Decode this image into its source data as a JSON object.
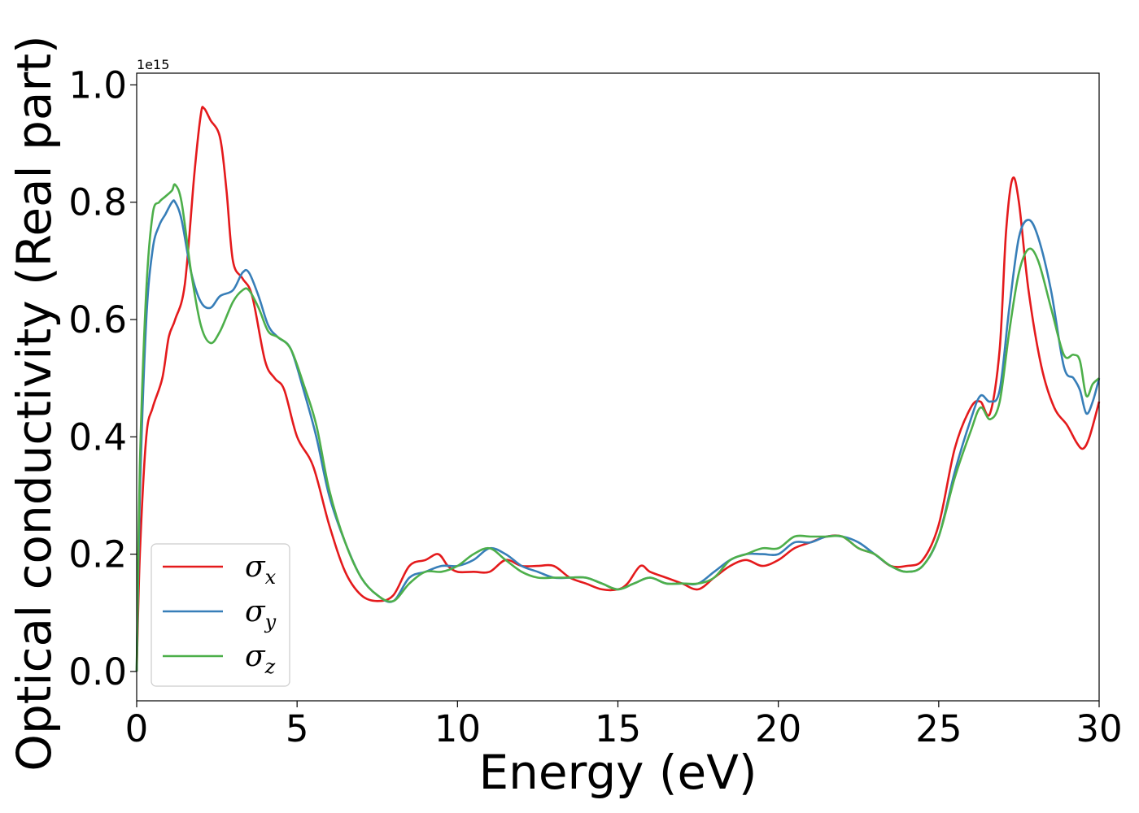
{
  "chart_data": {
    "type": "line",
    "title": "",
    "xlabel": "Energy (eV)",
    "ylabel": "Optical conductivity (Real part)",
    "y_offset_label": "1e15",
    "xlim": [
      0,
      30
    ],
    "ylim": [
      -0.05,
      1.02
    ],
    "xticks": [
      0,
      5,
      10,
      15,
      20,
      25,
      30
    ],
    "xtick_labels": [
      "0",
      "5",
      "10",
      "15",
      "20",
      "25",
      "30"
    ],
    "yticks": [
      0.0,
      0.2,
      0.4,
      0.6,
      0.8,
      1.0
    ],
    "ytick_labels": [
      "0.0",
      "0.2",
      "0.4",
      "0.6",
      "0.8",
      "1.0"
    ],
    "grid": false,
    "legend_position": "lower-left",
    "series": [
      {
        "name": "σx",
        "symbol": "σ",
        "subscript": "x",
        "color": "#e41a1c",
        "x": [
          0,
          0.1,
          0.3,
          0.5,
          0.8,
          1.0,
          1.2,
          1.5,
          1.8,
          2.0,
          2.1,
          2.3,
          2.6,
          2.8,
          3.0,
          3.3,
          3.6,
          4.0,
          4.3,
          4.6,
          5.0,
          5.5,
          6.0,
          6.5,
          7.0,
          7.5,
          8.0,
          8.5,
          9.0,
          9.4,
          9.7,
          10.0,
          10.5,
          11.0,
          11.5,
          12.0,
          12.5,
          13.0,
          13.5,
          14.0,
          14.5,
          15.0,
          15.3,
          15.7,
          16.0,
          16.5,
          17.0,
          17.5,
          18.0,
          18.5,
          19.0,
          19.5,
          20.0,
          20.5,
          21.0,
          21.5,
          22.0,
          22.5,
          23.0,
          23.5,
          24.0,
          24.5,
          25.0,
          25.5,
          26.0,
          26.3,
          26.6,
          26.9,
          27.1,
          27.3,
          27.5,
          27.8,
          28.2,
          28.6,
          29.0,
          29.3,
          29.5,
          29.7,
          30.0
        ],
        "y": [
          0.0,
          0.2,
          0.4,
          0.45,
          0.5,
          0.57,
          0.6,
          0.66,
          0.85,
          0.95,
          0.96,
          0.94,
          0.91,
          0.82,
          0.7,
          0.67,
          0.64,
          0.53,
          0.5,
          0.48,
          0.4,
          0.35,
          0.25,
          0.17,
          0.13,
          0.12,
          0.13,
          0.18,
          0.19,
          0.2,
          0.18,
          0.17,
          0.17,
          0.17,
          0.19,
          0.18,
          0.18,
          0.18,
          0.16,
          0.15,
          0.14,
          0.14,
          0.15,
          0.18,
          0.17,
          0.16,
          0.15,
          0.14,
          0.16,
          0.18,
          0.19,
          0.18,
          0.19,
          0.21,
          0.22,
          0.23,
          0.23,
          0.21,
          0.2,
          0.18,
          0.18,
          0.19,
          0.25,
          0.38,
          0.45,
          0.46,
          0.44,
          0.55,
          0.75,
          0.84,
          0.8,
          0.65,
          0.52,
          0.45,
          0.42,
          0.39,
          0.38,
          0.4,
          0.46
        ]
      },
      {
        "name": "σy",
        "symbol": "σ",
        "subscript": "y",
        "color": "#377eb8",
        "x": [
          0,
          0.1,
          0.3,
          0.5,
          0.7,
          0.9,
          1.1,
          1.2,
          1.4,
          1.7,
          2.0,
          2.3,
          2.6,
          3.0,
          3.3,
          3.5,
          3.8,
          4.1,
          4.4,
          4.8,
          5.2,
          5.6,
          6.0,
          6.5,
          7.0,
          7.5,
          8.0,
          8.5,
          9.0,
          9.5,
          10.0,
          10.5,
          11.0,
          11.5,
          12.0,
          12.5,
          13.0,
          13.5,
          14.0,
          14.5,
          15.0,
          15.5,
          16.0,
          16.5,
          17.0,
          17.5,
          18.0,
          18.5,
          19.0,
          19.5,
          20.0,
          20.5,
          21.0,
          21.5,
          22.0,
          22.5,
          23.0,
          23.5,
          24.0,
          24.5,
          25.0,
          25.5,
          26.0,
          26.3,
          26.6,
          26.9,
          27.2,
          27.5,
          27.8,
          28.1,
          28.5,
          28.9,
          29.2,
          29.4,
          29.6,
          29.8,
          30.0
        ],
        "y": [
          0.0,
          0.3,
          0.6,
          0.72,
          0.76,
          0.78,
          0.8,
          0.8,
          0.77,
          0.68,
          0.63,
          0.62,
          0.64,
          0.65,
          0.68,
          0.68,
          0.64,
          0.59,
          0.57,
          0.55,
          0.48,
          0.4,
          0.3,
          0.22,
          0.16,
          0.13,
          0.12,
          0.16,
          0.17,
          0.18,
          0.18,
          0.19,
          0.21,
          0.2,
          0.18,
          0.17,
          0.16,
          0.16,
          0.16,
          0.15,
          0.14,
          0.15,
          0.16,
          0.15,
          0.15,
          0.15,
          0.17,
          0.19,
          0.2,
          0.2,
          0.2,
          0.22,
          0.22,
          0.23,
          0.23,
          0.22,
          0.2,
          0.18,
          0.17,
          0.18,
          0.23,
          0.34,
          0.43,
          0.47,
          0.46,
          0.48,
          0.62,
          0.74,
          0.77,
          0.74,
          0.65,
          0.52,
          0.5,
          0.48,
          0.44,
          0.46,
          0.5
        ]
      },
      {
        "name": "σz",
        "symbol": "σ",
        "subscript": "z",
        "color": "#4daf4a",
        "x": [
          0,
          0.1,
          0.3,
          0.5,
          0.7,
          0.9,
          1.1,
          1.2,
          1.4,
          1.7,
          2.0,
          2.3,
          2.6,
          3.0,
          3.3,
          3.5,
          3.8,
          4.1,
          4.4,
          4.8,
          5.2,
          5.6,
          6.0,
          6.5,
          7.0,
          7.5,
          8.0,
          8.5,
          9.0,
          9.5,
          10.0,
          10.5,
          11.0,
          11.5,
          12.0,
          12.5,
          13.0,
          13.5,
          14.0,
          14.5,
          15.0,
          15.5,
          16.0,
          16.5,
          17.0,
          17.5,
          18.0,
          18.5,
          19.0,
          19.5,
          20.0,
          20.5,
          21.0,
          21.5,
          22.0,
          22.5,
          23.0,
          23.5,
          24.0,
          24.5,
          25.0,
          25.5,
          26.0,
          26.3,
          26.6,
          26.9,
          27.2,
          27.5,
          27.8,
          28.1,
          28.5,
          28.9,
          29.2,
          29.4,
          29.6,
          29.8,
          30.0
        ],
        "y": [
          0.0,
          0.35,
          0.65,
          0.78,
          0.8,
          0.81,
          0.82,
          0.83,
          0.8,
          0.68,
          0.59,
          0.56,
          0.58,
          0.63,
          0.65,
          0.65,
          0.62,
          0.58,
          0.57,
          0.55,
          0.49,
          0.42,
          0.31,
          0.22,
          0.16,
          0.13,
          0.12,
          0.15,
          0.17,
          0.17,
          0.18,
          0.2,
          0.21,
          0.19,
          0.17,
          0.16,
          0.16,
          0.16,
          0.16,
          0.15,
          0.14,
          0.15,
          0.16,
          0.15,
          0.15,
          0.15,
          0.16,
          0.19,
          0.2,
          0.21,
          0.21,
          0.23,
          0.23,
          0.23,
          0.23,
          0.21,
          0.2,
          0.18,
          0.17,
          0.18,
          0.23,
          0.33,
          0.41,
          0.45,
          0.43,
          0.46,
          0.58,
          0.68,
          0.72,
          0.7,
          0.62,
          0.54,
          0.54,
          0.53,
          0.47,
          0.49,
          0.5
        ]
      }
    ]
  }
}
